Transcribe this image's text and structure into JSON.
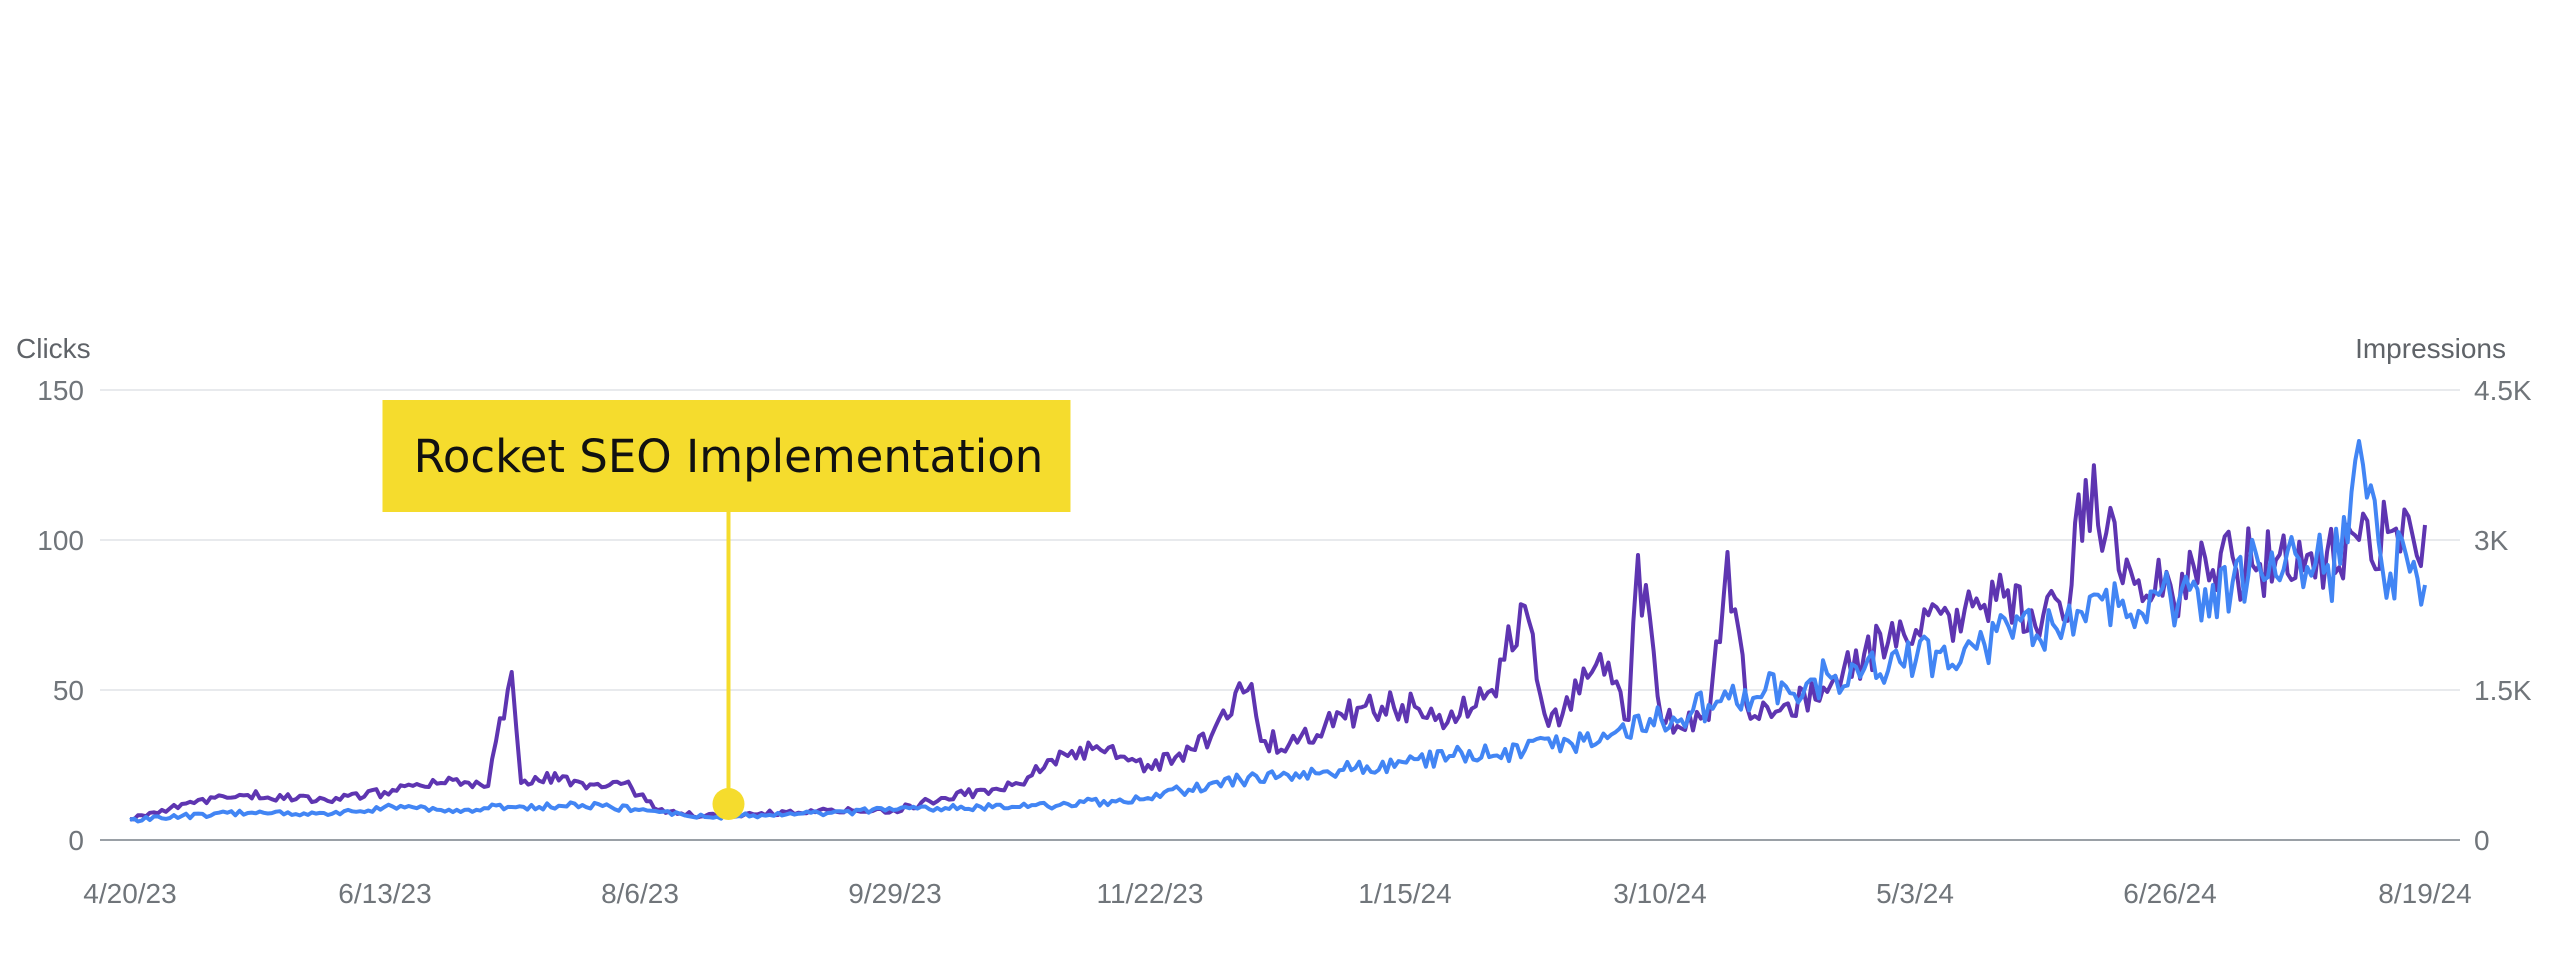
{
  "chart_data": {
    "type": "line",
    "title": "",
    "left_axis": {
      "label": "Clicks",
      "ticks": [
        "0",
        "50",
        "100",
        "150"
      ],
      "range": [
        0,
        150
      ]
    },
    "right_axis": {
      "label": "Impressions",
      "ticks": [
        "0",
        "1.5K",
        "3K",
        "4.5K"
      ],
      "range": [
        0,
        4500
      ]
    },
    "x_ticks": [
      "4/20/23",
      "6/13/23",
      "8/6/23",
      "9/29/23",
      "11/22/23",
      "1/15/24",
      "3/10/24",
      "5/3/24",
      "6/26/24",
      "8/19/24"
    ],
    "x_range": [
      "2023-04-20",
      "2024-08-19"
    ],
    "grid": true,
    "series": [
      {
        "axis": "left",
        "color": "#5e35b1",
        "x": [
          "2023-04-20",
          "2023-05-01",
          "2023-05-15",
          "2023-06-01",
          "2023-06-13",
          "2023-06-25",
          "2023-07-05",
          "2023-07-10",
          "2023-07-12",
          "2023-07-15",
          "2023-07-25",
          "2023-08-03",
          "2023-08-06",
          "2023-08-10",
          "2023-08-20",
          "2023-09-01",
          "2023-09-15",
          "2023-09-29",
          "2023-10-10",
          "2023-10-25",
          "2023-11-05",
          "2023-11-12",
          "2023-11-22",
          "2023-12-02",
          "2023-12-14",
          "2023-12-16",
          "2023-12-22",
          "2024-01-02",
          "2024-01-15",
          "2024-01-22",
          "2024-02-03",
          "2024-02-10",
          "2024-02-15",
          "2024-02-18",
          "2024-02-26",
          "2024-03-03",
          "2024-03-05",
          "2024-03-10",
          "2024-03-20",
          "2024-03-24",
          "2024-03-28",
          "2024-04-05",
          "2024-04-15",
          "2024-04-22",
          "2024-05-03",
          "2024-05-10",
          "2024-05-20",
          "2024-05-30",
          "2024-06-05",
          "2024-06-08",
          "2024-06-15",
          "2024-06-26",
          "2024-07-05",
          "2024-07-15",
          "2024-07-25",
          "2024-08-05",
          "2024-08-12",
          "2024-08-19"
        ],
        "values": [
          7,
          12,
          15,
          13,
          16,
          19,
          18,
          56,
          19,
          21,
          19,
          19,
          15,
          10,
          8,
          9,
          10,
          10,
          14,
          19,
          28,
          30,
          25,
          30,
          52,
          33,
          32,
          42,
          45,
          40,
          50,
          78,
          38,
          42,
          62,
          40,
          95,
          40,
          40,
          96,
          45,
          45,
          52,
          62,
          70,
          75,
          80,
          75,
          85,
          120,
          90,
          85,
          90,
          92,
          95,
          100,
          103,
          105
        ]
      },
      {
        "axis": "right",
        "color": "#4285f4",
        "x": [
          "2023-04-20",
          "2023-05-01",
          "2023-05-15",
          "2023-06-01",
          "2023-06-13",
          "2023-06-25",
          "2023-07-10",
          "2023-07-25",
          "2023-08-06",
          "2023-08-20",
          "2023-09-01",
          "2023-09-15",
          "2023-09-29",
          "2023-10-10",
          "2023-10-25",
          "2023-11-05",
          "2023-11-22",
          "2023-12-05",
          "2023-12-20",
          "2024-01-05",
          "2024-01-15",
          "2024-01-25",
          "2024-02-10",
          "2024-02-20",
          "2024-03-01",
          "2024-03-10",
          "2024-03-20",
          "2024-04-01",
          "2024-04-15",
          "2024-04-22",
          "2024-05-03",
          "2024-05-15",
          "2024-06-01",
          "2024-06-15",
          "2024-06-26",
          "2024-07-05",
          "2024-07-15",
          "2024-07-25",
          "2024-08-01",
          "2024-08-05",
          "2024-08-10",
          "2024-08-15",
          "2024-08-19"
        ],
        "values": [
          200,
          240,
          270,
          250,
          330,
          300,
          330,
          350,
          300,
          230,
          250,
          270,
          300,
          320,
          330,
          360,
          420,
          560,
          640,
          720,
          780,
          840,
          900,
          960,
          1110,
          1200,
          1350,
          1500,
          1620,
          1710,
          1800,
          1950,
          2160,
          2340,
          2430,
          2550,
          2700,
          2730,
          2760,
          3990,
          2700,
          2850,
          2550
        ]
      }
    ],
    "annotation": {
      "text": "Rocket SEO Implementation",
      "date": "2023-08-25",
      "value": 12,
      "color": "#f5dc2d"
    }
  }
}
